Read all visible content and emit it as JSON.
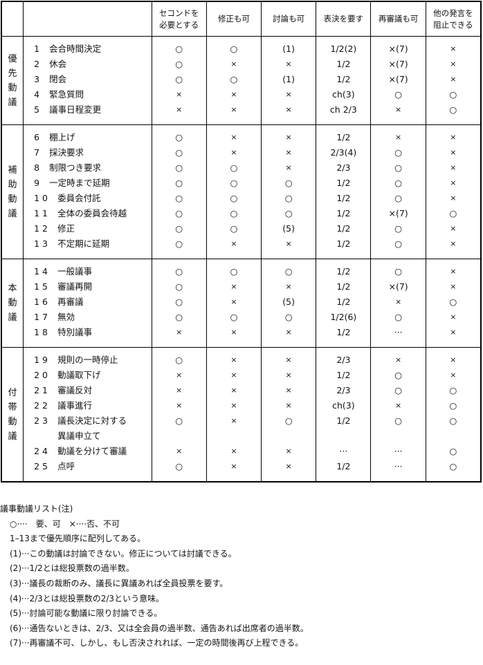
{
  "header": {
    "columns": [
      "セコンドを\n必要とする",
      "修正も可",
      "討論も可",
      "表決を要す",
      "再審議も可",
      "他の発言を\n阻止できる"
    ]
  },
  "groups": [
    {
      "label": "優先動議",
      "rows": [
        {
          "num": "1",
          "name": "会合時間決定",
          "values": [
            "○",
            "○",
            "(1)",
            "1/2(2)",
            "×(7)",
            "×"
          ]
        },
        {
          "num": "2",
          "name": "休会",
          "values": [
            "○",
            "×",
            "×",
            "1/2",
            "×(7)",
            "×"
          ]
        },
        {
          "num": "3",
          "name": "閉会",
          "values": [
            "○",
            "○",
            "(1)",
            "1/2",
            "×(7)",
            "×"
          ]
        },
        {
          "num": "4",
          "name": "緊急質問",
          "values": [
            "×",
            "×",
            "×",
            "ch(3)",
            "○",
            "○"
          ]
        },
        {
          "num": "5",
          "name": "議事日程変更",
          "values": [
            "×",
            "×",
            "×",
            "ch 2/3",
            "×",
            "○"
          ]
        }
      ]
    },
    {
      "label": "補助動議",
      "rows": [
        {
          "num": "6",
          "name": "棚上げ",
          "values": [
            "○",
            "×",
            "×",
            "1/2",
            "×",
            "×"
          ]
        },
        {
          "num": "7",
          "name": "採決要求",
          "values": [
            "○",
            "×",
            "×",
            "2/3(4)",
            "○",
            "×"
          ]
        },
        {
          "num": "8",
          "name": "制限つき要求",
          "values": [
            "○",
            "○",
            "×",
            "2/3",
            "○",
            "×"
          ]
        },
        {
          "num": "9",
          "name": "一定時まで延期",
          "values": [
            "○",
            "○",
            "○",
            "1/2",
            "○",
            "×"
          ]
        },
        {
          "num": "10",
          "name": "委員会付託",
          "values": [
            "○",
            "○",
            "○",
            "1/2",
            "○",
            "×"
          ]
        },
        {
          "num": "11",
          "name": "全体の委員会待越",
          "values": [
            "○",
            "○",
            "○",
            "1/2",
            "×(7)",
            "○"
          ]
        },
        {
          "num": "12",
          "name": "修正",
          "values": [
            "○",
            "○",
            "(5)",
            "1/2",
            "○",
            "×"
          ]
        },
        {
          "num": "13",
          "name": "不定期に延期",
          "values": [
            "○",
            "×",
            "×",
            "1/2",
            "○",
            "×"
          ]
        }
      ]
    },
    {
      "label": "本動議",
      "rows": [
        {
          "num": "14",
          "name": "一般議事",
          "values": [
            "○",
            "○",
            "○",
            "1/2",
            "○",
            "×"
          ]
        },
        {
          "num": "15",
          "name": "審議再開",
          "values": [
            "○",
            "×",
            "×",
            "1/2",
            "×(7)",
            "×"
          ]
        },
        {
          "num": "16",
          "name": "再審議",
          "values": [
            "○",
            "×",
            "(5)",
            "1/2",
            "×",
            "○"
          ]
        },
        {
          "num": "17",
          "name": "無効",
          "values": [
            "○",
            "○",
            "○",
            "1/2(6)",
            "○",
            "×"
          ]
        },
        {
          "num": "18",
          "name": "特別議事",
          "values": [
            "×",
            "×",
            "×",
            "1/2",
            "···",
            "×"
          ]
        }
      ]
    },
    {
      "label": "付帯動議",
      "rows": [
        {
          "num": "19",
          "name": "規則の一時停止",
          "values": [
            "○",
            "×",
            "×",
            "2/3",
            "×",
            "×"
          ]
        },
        {
          "num": "20",
          "name": "動議取下げ",
          "values": [
            "×",
            "×",
            "×",
            "1/2",
            "○",
            "×"
          ]
        },
        {
          "num": "21",
          "name": "審議反対",
          "values": [
            "×",
            "×",
            "×",
            "2/3",
            "○",
            "○"
          ]
        },
        {
          "num": "22",
          "name": "議事進行",
          "values": [
            "×",
            "×",
            "×",
            "ch(3)",
            "×",
            "○"
          ]
        },
        {
          "num": "23",
          "name": "議長決定に対する\n異議申立て",
          "values": [
            "○",
            "×",
            "○",
            "1/2",
            "○",
            "○"
          ]
        },
        {
          "num": "24",
          "name": "動議を分けて審議",
          "values": [
            "×",
            "×",
            "×",
            "···",
            "···",
            "○"
          ]
        },
        {
          "num": "25",
          "name": "点呼",
          "values": [
            "○",
            "×",
            "×",
            "1/2",
            "···",
            "○"
          ]
        }
      ]
    }
  ],
  "notes": {
    "title": "議事動議リスト(注)",
    "lines": [
      "○····　要、可　×····否、不可",
      "1–13まで優先順序に配列してある。",
      "(1)···この動議は討論できない。修正については討議できる。",
      "(2)···1/2とは総投票数の過半数。",
      "(3)···議長の裁断のみ、議長に異議あれば全員投票を要す。",
      "(4)···2/3とは総投票数の2/3という意味。",
      "(5)···討論可能な動議に限り討論できる。",
      "(6)···通告ないときは、2/3、又は全会員の過半数、通告あれば出席者の過半数。",
      "(7)···再審議不可、しかし、もし否決されれば、一定の時間後再び上程できる。"
    ]
  }
}
